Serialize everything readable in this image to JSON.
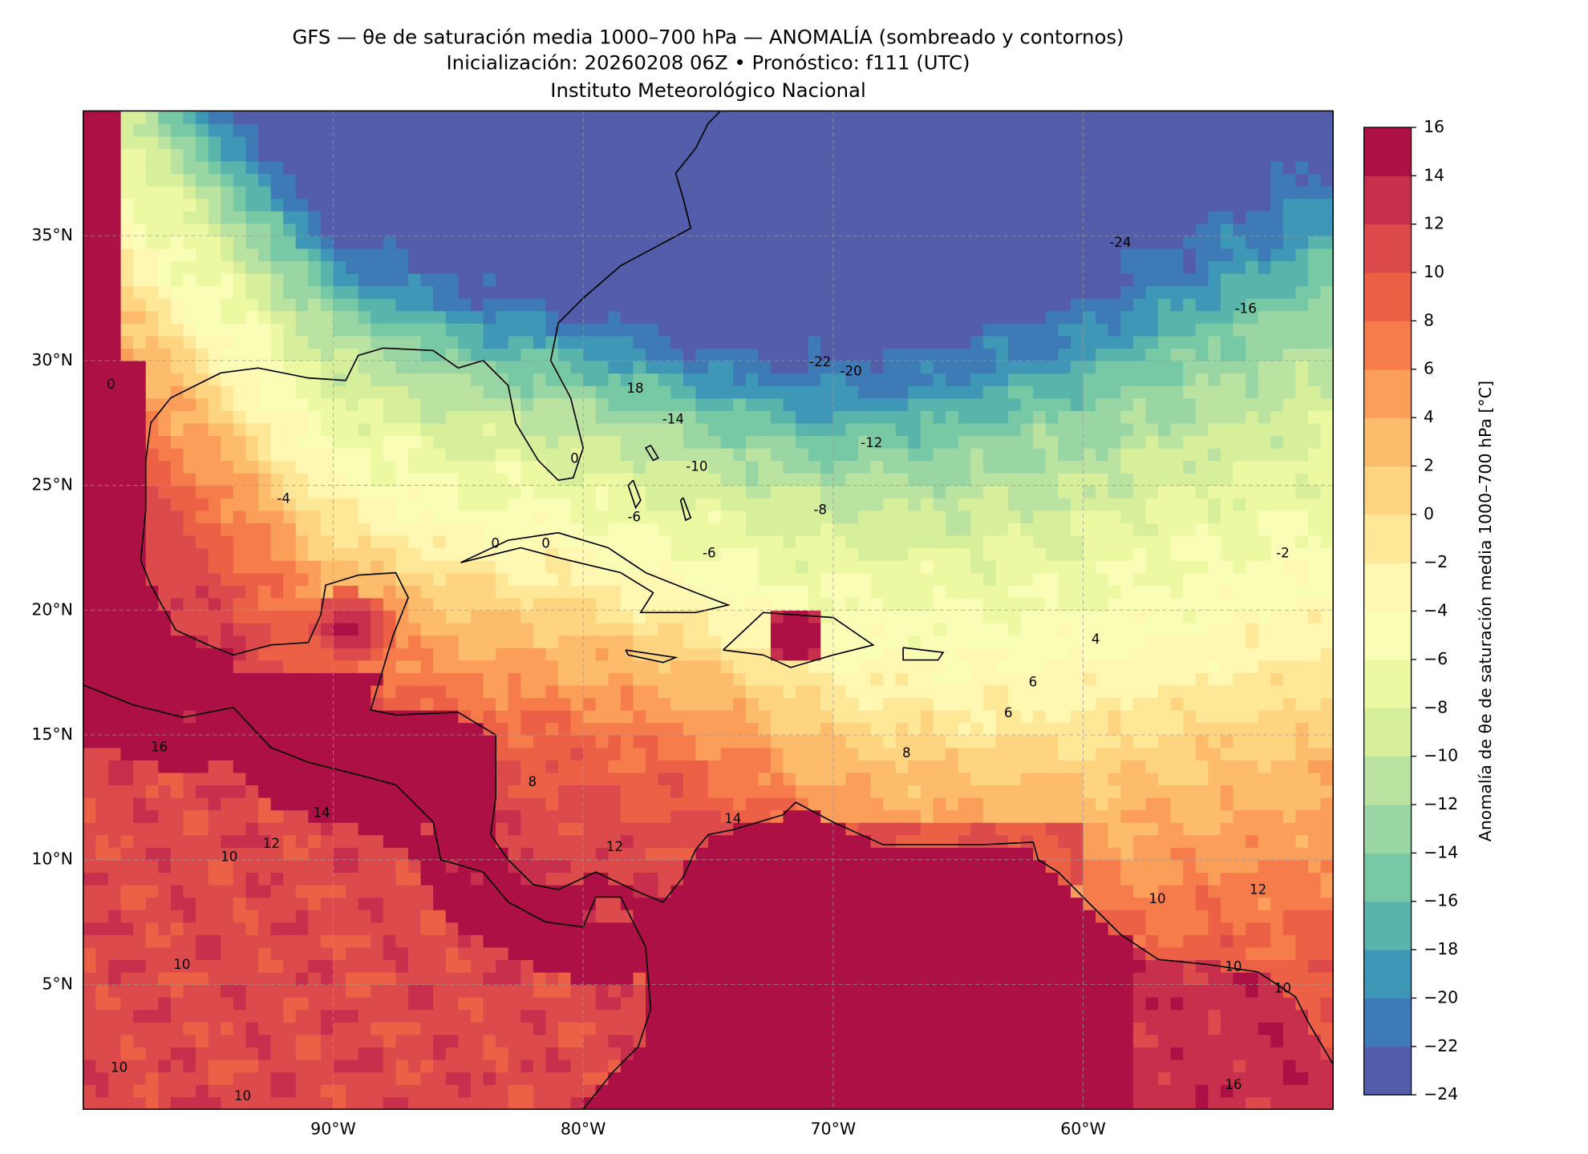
{
  "chart_data": {
    "type": "map",
    "title_lines": [
      "GFS — θe de saturación media 1000–700 hPa — ANOMALÍA (sombreado y contornos)",
      "Inicialización: 20260208 06Z   •   Pronóstico: f111 (UTC)",
      "Instituto Meteorológico Nacional"
    ],
    "xlim": [
      -100,
      -50
    ],
    "ylim": [
      0,
      40
    ],
    "xticks": [
      {
        "value": -90,
        "label": "90°W"
      },
      {
        "value": -80,
        "label": "80°W"
      },
      {
        "value": -70,
        "label": "70°W"
      },
      {
        "value": -60,
        "label": "60°W"
      }
    ],
    "yticks": [
      {
        "value": 5,
        "label": "5°N"
      },
      {
        "value": 10,
        "label": "10°N"
      },
      {
        "value": 15,
        "label": "15°N"
      },
      {
        "value": 20,
        "label": "20°N"
      },
      {
        "value": 25,
        "label": "25°N"
      },
      {
        "value": 30,
        "label": "30°N"
      },
      {
        "value": 35,
        "label": "35°N"
      }
    ],
    "grid": true,
    "colorbar": {
      "label": "Anomalía de θe de saturación media 1000–700 hPa [°C]",
      "ticks": [
        {
          "value": -24,
          "label": "−24"
        },
        {
          "value": -22,
          "label": "−22"
        },
        {
          "value": -20,
          "label": "−20"
        },
        {
          "value": -18,
          "label": "−18"
        },
        {
          "value": -16,
          "label": "−16"
        },
        {
          "value": -14,
          "label": "−14"
        },
        {
          "value": -12,
          "label": "−12"
        },
        {
          "value": -10,
          "label": "−10"
        },
        {
          "value": -8,
          "label": "−8"
        },
        {
          "value": -6,
          "label": "−6"
        },
        {
          "value": -4,
          "label": "−4"
        },
        {
          "value": -2,
          "label": "−2"
        },
        0,
        2,
        4,
        6,
        8,
        10,
        12,
        14,
        16
      ],
      "colormap": [
        "#5e4fa2",
        "#3288bd",
        "#66c2a5",
        "#abdda4",
        "#e6f598",
        "#ffffbf",
        "#fee08b",
        "#fdae61",
        "#f46d43",
        "#d53e4f",
        "#9e0142"
      ]
    },
    "contour_labels": [
      -24,
      -16,
      -22,
      -20,
      18,
      -14,
      -12,
      -10,
      -8,
      -6,
      -6,
      -4,
      -2,
      0,
      0,
      0,
      0,
      4,
      6,
      6,
      8,
      8,
      16,
      14,
      12,
      10,
      12,
      14,
      10,
      10,
      10,
      10,
      12,
      10,
      10,
      16
    ]
  }
}
